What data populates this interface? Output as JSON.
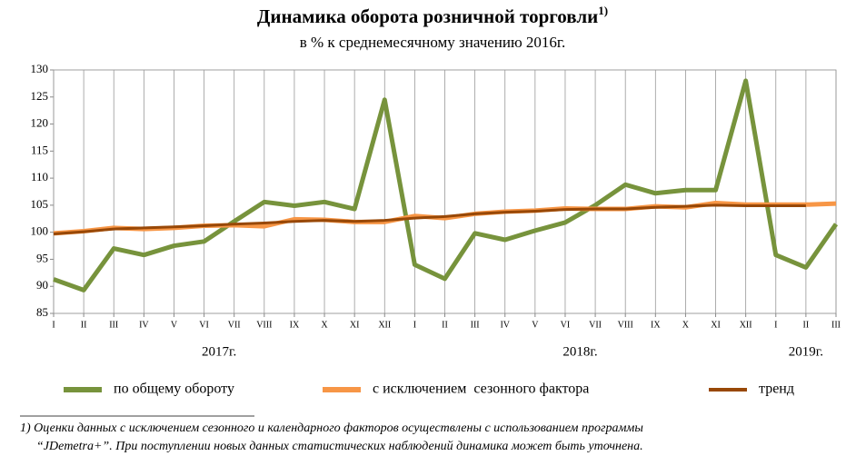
{
  "chart_data": {
    "type": "line",
    "title": "Динамика оборота розничной торговли",
    "title_note": "1)",
    "subtitle": "в % к среднемесячному значению 2016г.",
    "categories": [
      "I",
      "II",
      "III",
      "IV",
      "V",
      "VI",
      "VII",
      "VIII",
      "IX",
      "X",
      "XI",
      "XII",
      "I",
      "II",
      "III",
      "IV",
      "V",
      "VI",
      "VII",
      "VIII",
      "IX",
      "X",
      "XI",
      "XII",
      "I",
      "II",
      "III"
    ],
    "x_groups": [
      "2017г.",
      "2018г.",
      "2019г."
    ],
    "series": [
      {
        "name": "по общему обороту",
        "color": "#77933c",
        "values": [
          91.3,
          89.3,
          97,
          95.8,
          97.5,
          98.3,
          102,
          105.6,
          104.9,
          105.6,
          104.3,
          124.5,
          94,
          91.4,
          99.8,
          98.6,
          100.3,
          101.8,
          105,
          108.8,
          107.2,
          107.8,
          107.8,
          128,
          95.8,
          93.5,
          101.5
        ]
      },
      {
        "name": "с исключением  сезонного фактора",
        "color": "#f79646",
        "values": [
          99.8,
          100.2,
          100.8,
          100.6,
          100.8,
          101.2,
          101.3,
          101.1,
          102.4,
          102.3,
          101.9,
          101.9,
          103,
          102.6,
          103.4,
          103.8,
          104,
          104.4,
          104.3,
          104.3,
          104.8,
          104.6,
          105.4,
          105.1,
          105.1,
          105.1,
          105.3
        ]
      },
      {
        "name": "тренд",
        "color": "#984807",
        "values": [
          99.7,
          100.1,
          100.6,
          100.8,
          101,
          101.2,
          101.5,
          101.7,
          102,
          102.2,
          102,
          102.2,
          102.6,
          102.9,
          103.4,
          103.7,
          103.9,
          104.2,
          104.3,
          104.3,
          104.6,
          104.8,
          105,
          104.9,
          104.9,
          104.9,
          null
        ]
      }
    ],
    "ylim": [
      85,
      130
    ],
    "yticks": [
      85,
      90,
      95,
      100,
      105,
      110,
      115,
      120,
      125,
      130
    ],
    "grid": "x",
    "footnote": [
      "1) Оценки данных с исключением сезонного и календарного факторов осуществлены с использованием  программы",
      "“JDemetra+”. При поступлении новых данных статистических наблюдений динамика может быть уточнена."
    ]
  }
}
